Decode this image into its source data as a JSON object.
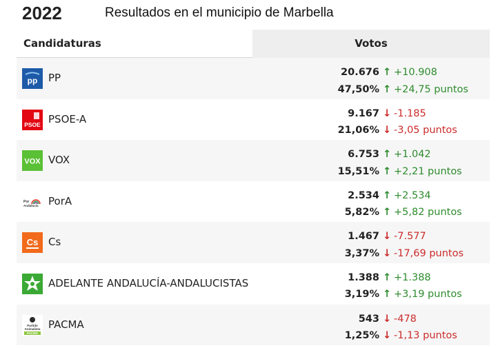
{
  "header": {
    "year": "2022",
    "subtitle": "Resultados en el municipio de Marbella"
  },
  "table": {
    "col_candidates": "Candidaturas",
    "col_votes": "Votos",
    "rows": [
      {
        "name": "PP",
        "votes": "20.676",
        "percent": "47,50%",
        "votes_change": "+10.908",
        "percent_change": "+24,75 puntos",
        "votes_trend": "up",
        "percent_trend": "up",
        "logo_text": "PP",
        "logo_color": "#1d5aa8"
      },
      {
        "name": "PSOE-A",
        "votes": "9.167",
        "percent": "21,06%",
        "votes_change": "-1.185",
        "percent_change": "-3,05 puntos",
        "votes_trend": "down",
        "percent_trend": "down",
        "logo_text": "PSOE",
        "logo_color": "#e30613"
      },
      {
        "name": "VOX",
        "votes": "6.753",
        "percent": "15,51%",
        "votes_change": "+1.042",
        "percent_change": "+2,21 puntos",
        "votes_trend": "up",
        "percent_trend": "up",
        "logo_text": "VOX",
        "logo_color": "#5ac035"
      },
      {
        "name": "PorA",
        "votes": "2.534",
        "percent": "5,82%",
        "votes_change": "+2.534",
        "percent_change": "+5,82 puntos",
        "votes_trend": "up",
        "percent_trend": "up",
        "logo_text": "Por Andalucía",
        "logo_color": "#ffffff"
      },
      {
        "name": "Cs",
        "votes": "1.467",
        "percent": "3,37%",
        "votes_change": "-7.577",
        "percent_change": "-17,69 puntos",
        "votes_trend": "down",
        "percent_trend": "down",
        "logo_text": "Cs",
        "logo_color": "#f26a1b"
      },
      {
        "name": "ADELANTE ANDALUCÍA-ANDALUCISTAS",
        "votes": "1.388",
        "percent": "3,19%",
        "votes_change": "+1.388",
        "percent_change": "+3,19 puntos",
        "votes_trend": "up",
        "percent_trend": "up",
        "logo_text": "",
        "logo_color": "#3aa935"
      },
      {
        "name": "PACMA",
        "votes": "543",
        "percent": "1,25%",
        "votes_change": "-478",
        "percent_change": "-1,13 puntos",
        "votes_trend": "down",
        "percent_trend": "down",
        "logo_text": "Partido Animalista PACMA",
        "logo_color": "#ffffff"
      }
    ]
  },
  "colors": {
    "up": "#2e8b2e",
    "down": "#cc2b2b",
    "header_bg": "#eeeeee",
    "alt_row_bg": "#f6f6f6"
  },
  "icons": {
    "up": "arrow-up-icon",
    "down": "arrow-down-icon"
  }
}
